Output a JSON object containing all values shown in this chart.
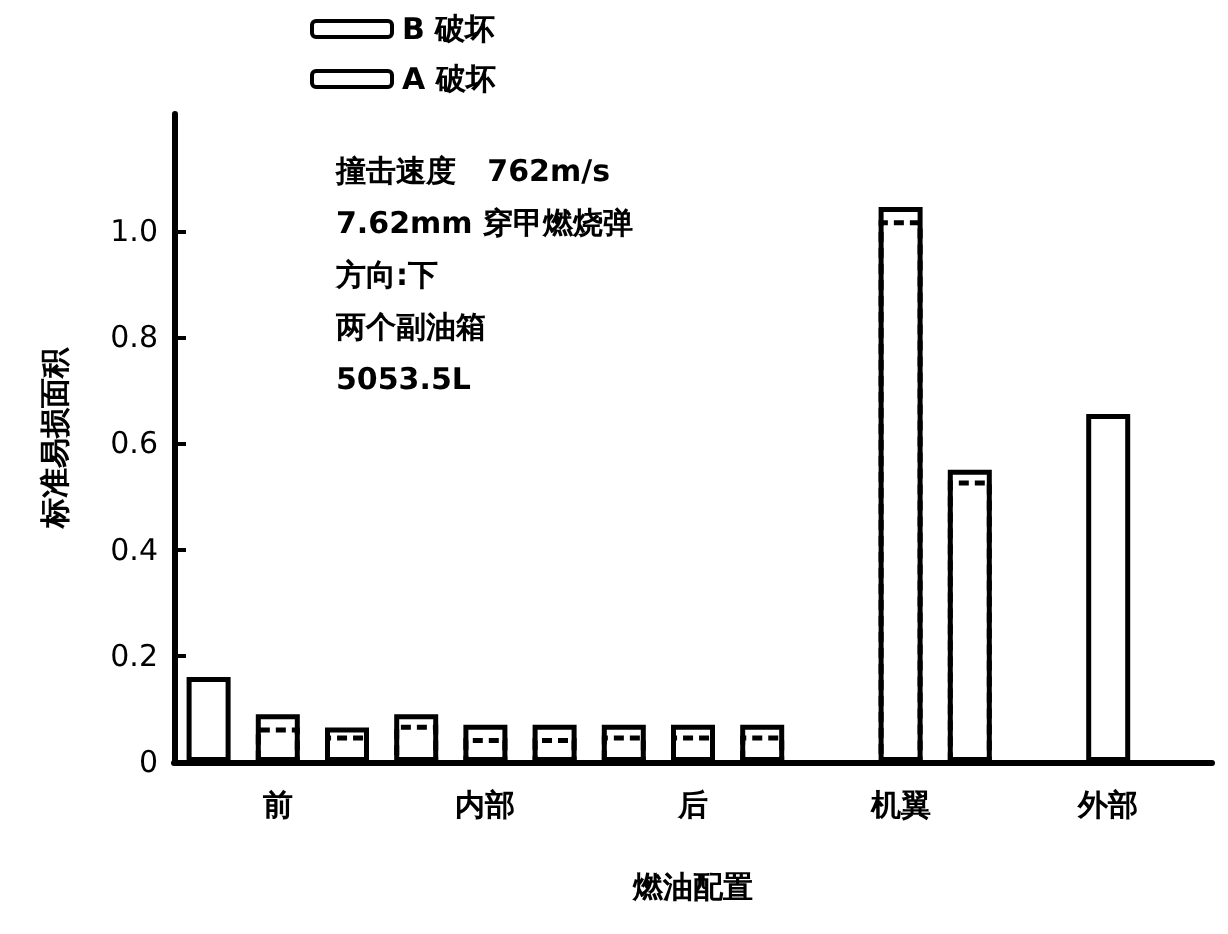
{
  "chart_data": {
    "type": "bar",
    "xlabel": "燃油配置",
    "ylabel": "标准易损面积",
    "categories": [
      null,
      "前",
      null,
      null,
      "内部",
      null,
      null,
      "后",
      null,
      null,
      "机翼",
      null,
      null,
      "外部",
      null
    ],
    "series": [
      {
        "name": "B 破坏",
        "color": "#000000",
        "line_style": "solid",
        "values": [
          0.16,
          0.09,
          0.065,
          0.09,
          0.07,
          0.07,
          0.07,
          0.07,
          0.07,
          null,
          1.045,
          0.55,
          null,
          0.655,
          null
        ]
      },
      {
        "name": "A 破坏",
        "color": "#000000",
        "line_style": "dashed",
        "values": [
          null,
          0.065,
          0.05,
          0.07,
          0.045,
          0.045,
          0.05,
          0.05,
          0.05,
          null,
          1.02,
          0.53,
          null,
          null,
          null
        ]
      }
    ],
    "ylim": [
      0,
      1.22
    ],
    "yticks": [
      0,
      0.2,
      0.4,
      0.6,
      0.8,
      {
        "value": 1.0,
        "label": "1.0"
      }
    ],
    "annotations": [
      "撞击速度   762m/s",
      "7.62mm 穿甲燃烧弹",
      "方向:下",
      "两个副油箱",
      "5053.5L"
    ],
    "legend": "top left",
    "grid": false
  }
}
